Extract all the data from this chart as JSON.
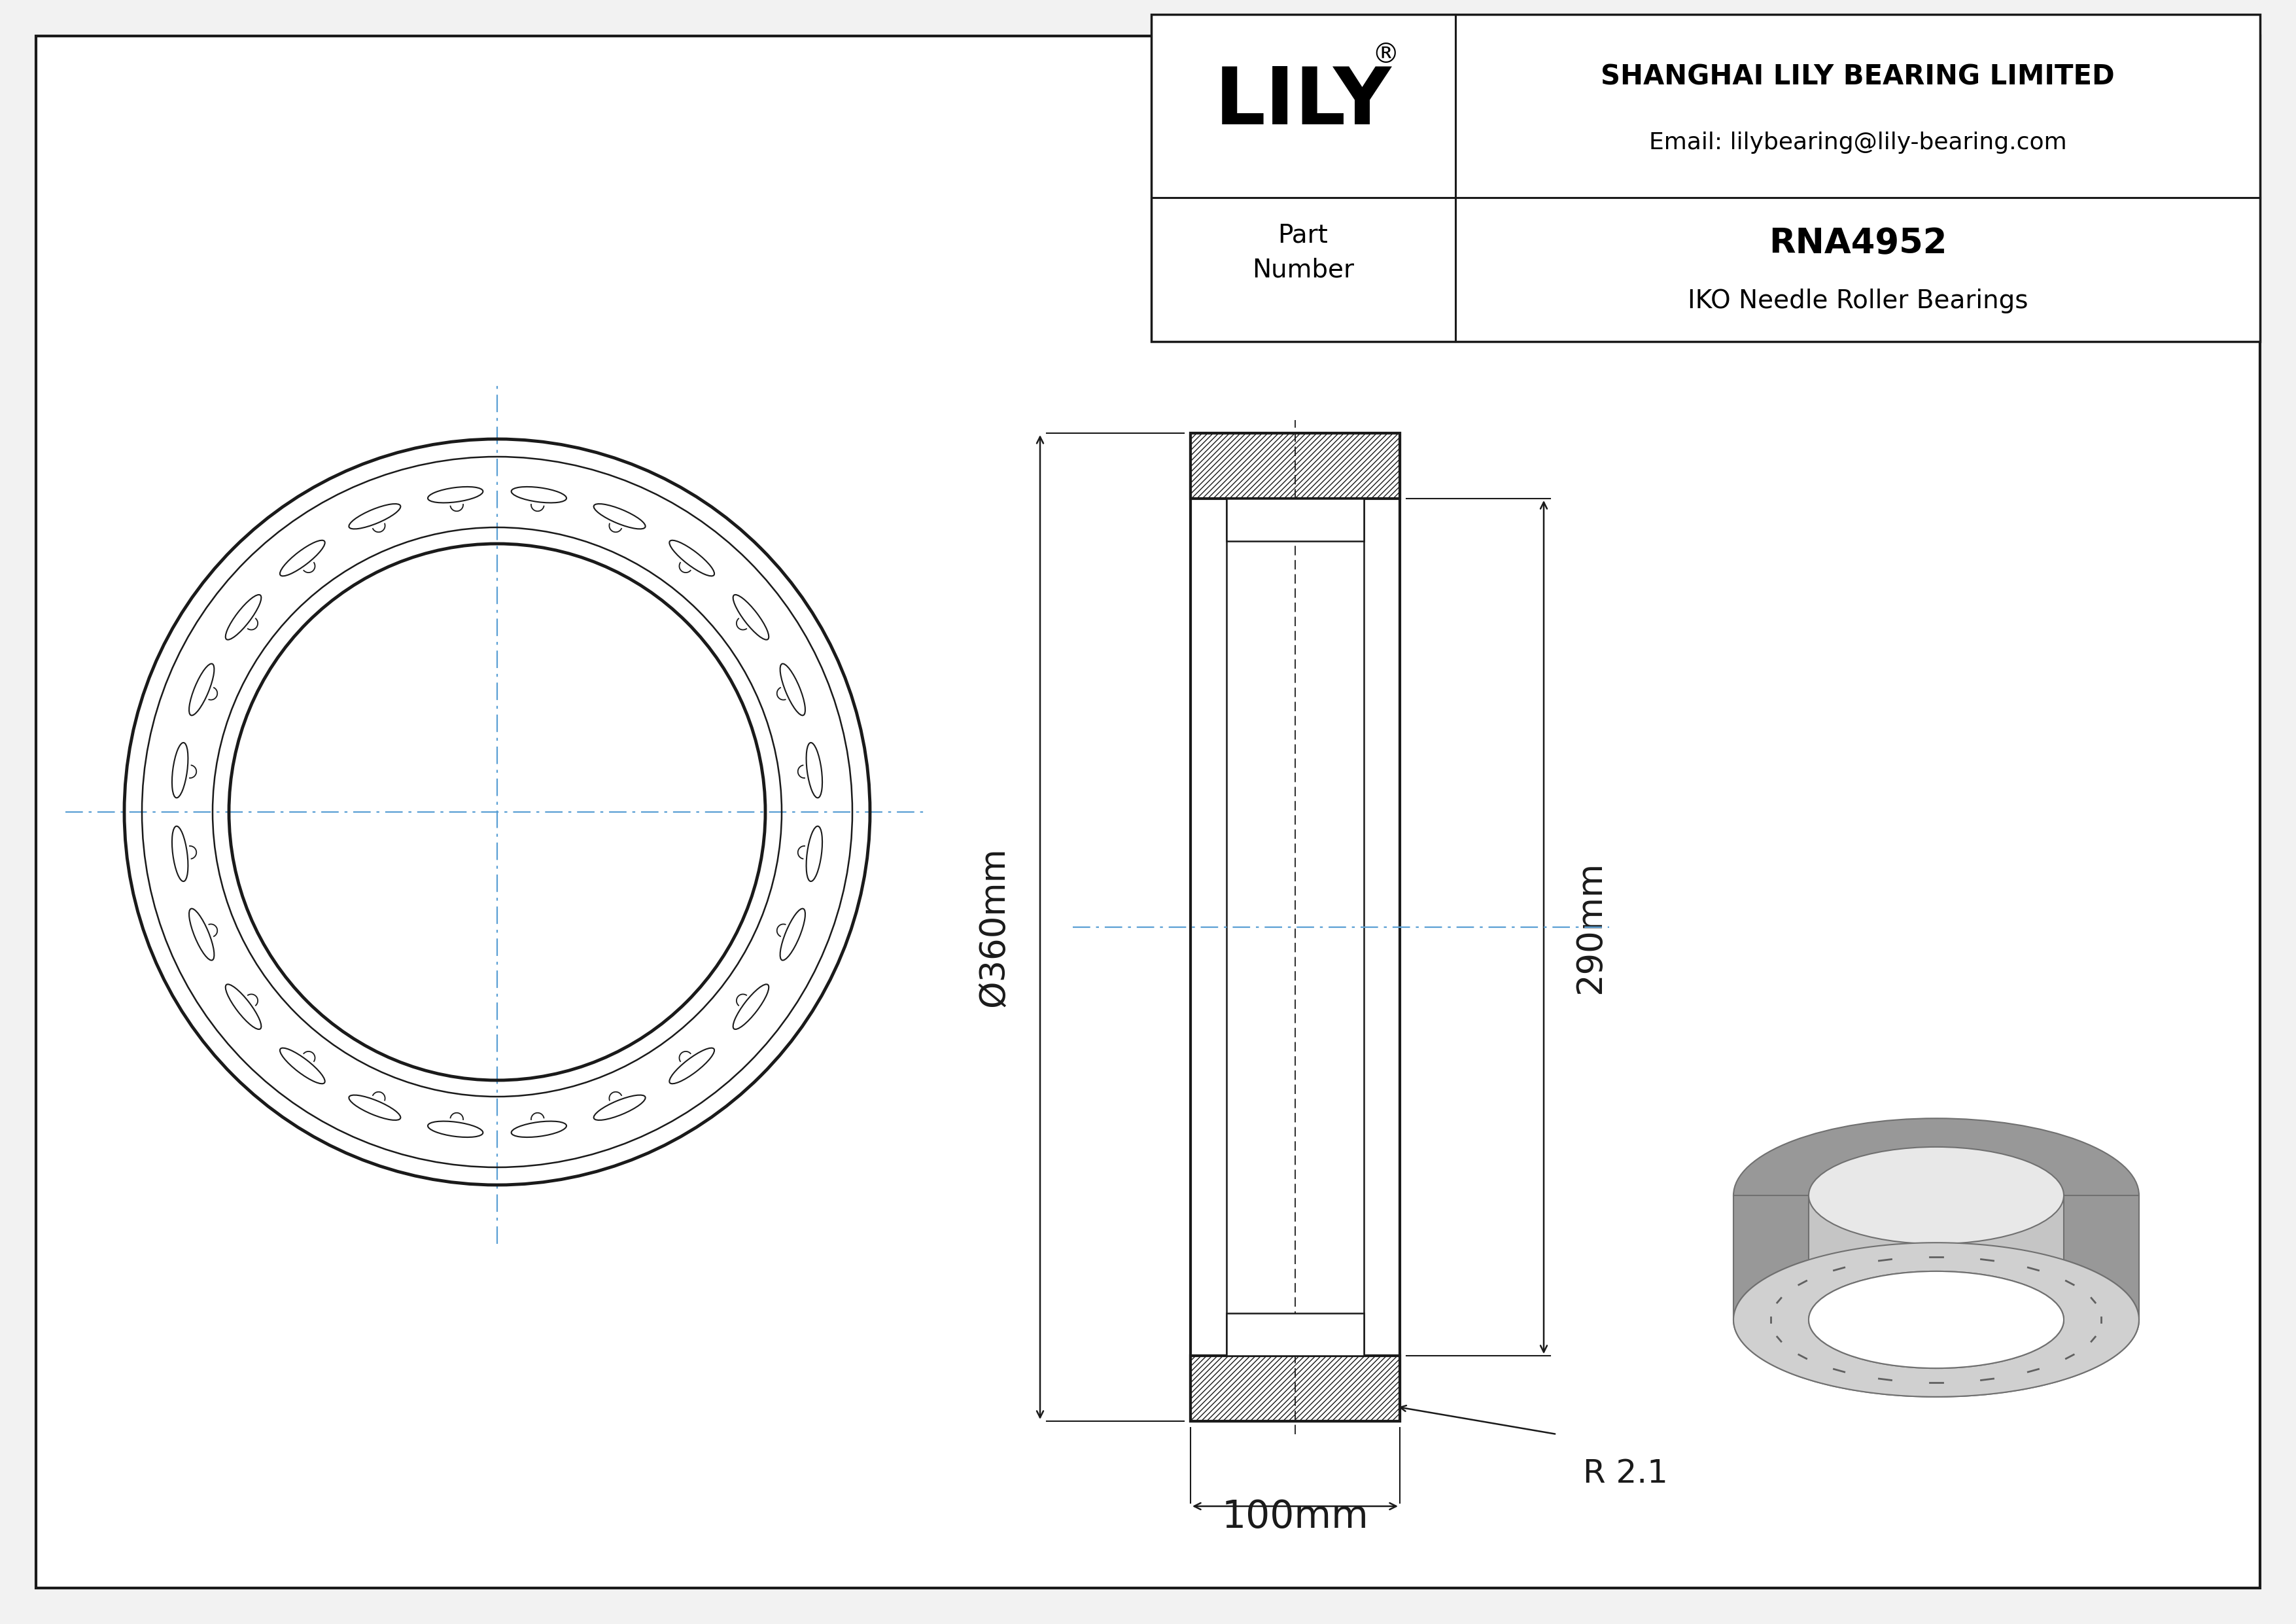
{
  "bg_color": "#f2f2f2",
  "line_color": "#1a1a1a",
  "dim_color": "#1a1a1a",
  "center_line_color": "#5a9fd4",
  "title_company": "SHANGHAI LILY BEARING LIMITED",
  "title_email": "Email: lilybearing@lily-bearing.com",
  "part_number": "RNA4952",
  "part_type": "IKO Needle Roller Bearings",
  "logo_text": "LILY",
  "dim_width": "100mm",
  "dim_radius": "R 2.1",
  "dim_od": "Ø360mm",
  "dim_height": "290mm",
  "num_rollers": 24,
  "lw_main": 3.0,
  "lw_thin": 1.8,
  "lw_dim": 1.8,
  "lw_hatch": 0.9
}
